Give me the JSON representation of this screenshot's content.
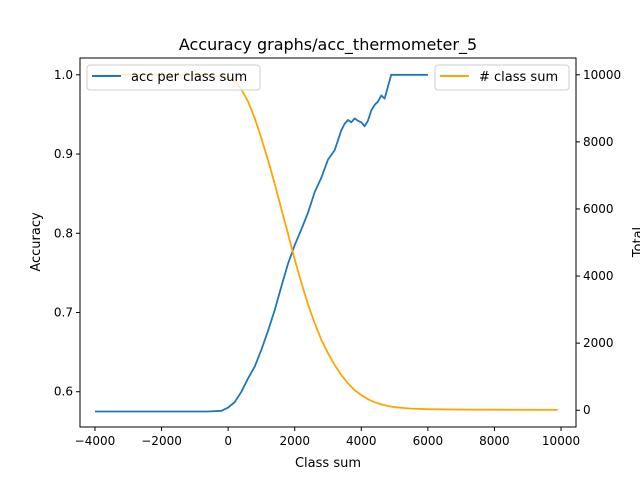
{
  "chart_data": {
    "type": "line",
    "title": "Accuracy graphs/acc_thermometer_5",
    "xlabel": "Class sum",
    "ylabel_left": "Accuracy",
    "ylabel_right": "Total",
    "xlim": [
      -4450,
      10450
    ],
    "ylim_left": [
      0.5555,
      1.0212
    ],
    "ylim_right": [
      -500,
      10500
    ],
    "x_ticks": [
      -4000,
      -2000,
      0,
      2000,
      4000,
      6000,
      8000,
      10000
    ],
    "x_tick_labels": [
      "−4000",
      "−2000",
      "0",
      "2000",
      "4000",
      "6000",
      "8000",
      "10000"
    ],
    "y_left_ticks": [
      0.6,
      0.7,
      0.8,
      0.9,
      1.0
    ],
    "y_left_tick_labels": [
      "0.6",
      "0.7",
      "0.8",
      "0.9",
      "1.0"
    ],
    "y_right_ticks": [
      0,
      2000,
      4000,
      6000,
      8000,
      10000
    ],
    "y_right_tick_labels": [
      "0",
      "2000",
      "4000",
      "6000",
      "8000",
      "10000"
    ],
    "grid": false,
    "series": [
      {
        "name": "acc per class sum",
        "axis": "left",
        "color": "#1f77b4",
        "x": [
          -4000,
          -3000,
          -2000,
          -1000,
          -600,
          -200,
          0,
          200,
          400,
          600,
          800,
          1000,
          1200,
          1400,
          1600,
          1800,
          2000,
          2200,
          2400,
          2600,
          2800,
          3000,
          3200,
          3400,
          3500,
          3600,
          3700,
          3800,
          3900,
          4000,
          4100,
          4200,
          4300,
          4400,
          4500,
          4600,
          4700,
          4800,
          4900,
          5000,
          5200,
          5400,
          5600,
          5800,
          6000
        ],
        "y": [
          0.575,
          0.575,
          0.575,
          0.575,
          0.575,
          0.576,
          0.58,
          0.587,
          0.6,
          0.617,
          0.632,
          0.653,
          0.677,
          0.703,
          0.733,
          0.762,
          0.785,
          0.805,
          0.826,
          0.852,
          0.87,
          0.893,
          0.905,
          0.93,
          0.938,
          0.943,
          0.94,
          0.945,
          0.942,
          0.94,
          0.935,
          0.942,
          0.955,
          0.962,
          0.966,
          0.974,
          0.97,
          0.985,
          1.0,
          1.0,
          1.0,
          1.0,
          1.0,
          1.0,
          1.0
        ]
      },
      {
        "name": "# class sum",
        "axis": "right",
        "color": "#ffa500",
        "x": [
          -4000,
          -2000,
          -1000,
          -500,
          0,
          200,
          400,
          600,
          800,
          1000,
          1200,
          1400,
          1600,
          1800,
          2000,
          2200,
          2400,
          2600,
          2800,
          3000,
          3200,
          3400,
          3600,
          3800,
          4000,
          4200,
          4400,
          4600,
          4800,
          5000,
          5500,
          6000,
          7000,
          8000,
          9900
        ],
        "y": [
          10000,
          10000,
          9990,
          9980,
          9930,
          9800,
          9560,
          9200,
          8700,
          8100,
          7450,
          6750,
          6000,
          5250,
          4500,
          3800,
          3150,
          2600,
          2100,
          1700,
          1350,
          1050,
          800,
          600,
          450,
          330,
          240,
          175,
          125,
          90,
          50,
          30,
          20,
          15,
          10
        ]
      }
    ],
    "legends": [
      {
        "series": 0,
        "placement": "top-left"
      },
      {
        "series": 1,
        "placement": "top-right"
      }
    ]
  }
}
